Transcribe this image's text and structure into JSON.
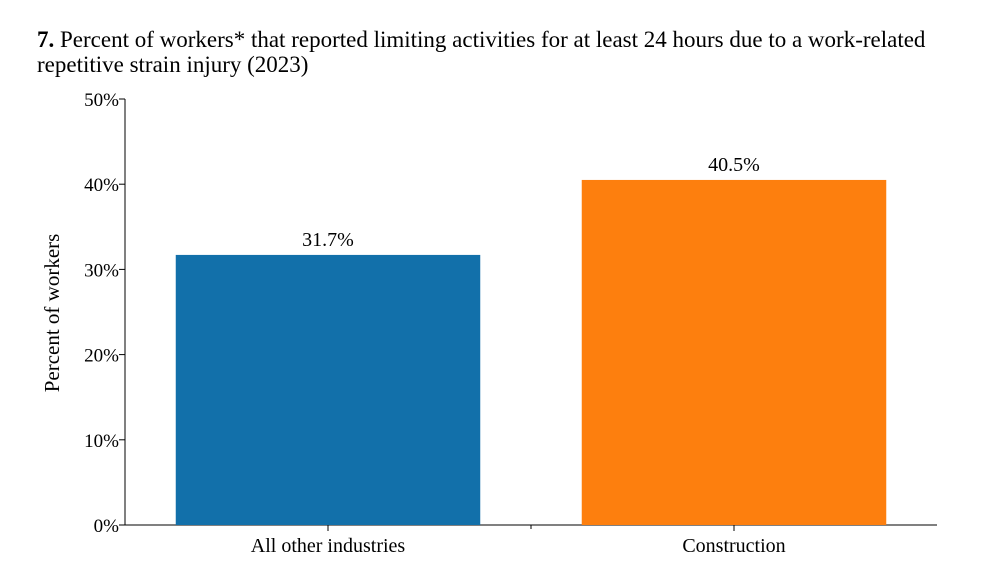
{
  "header": {
    "number": "7.",
    "title": "Percent of workers* that reported limiting activities for at least 24 hours due to a work-related repetitive strain injury (2023)"
  },
  "chart_data": {
    "type": "bar",
    "categories": [
      "All other industries",
      "Construction"
    ],
    "values": [
      31.7,
      40.5
    ],
    "value_labels": [
      "31.7%",
      "40.5%"
    ],
    "colors": [
      "#1270aa",
      "#fd7f0e"
    ],
    "ylabel": "Percent of workers",
    "ylim": [
      0,
      50
    ],
    "yticks": [
      0,
      10,
      20,
      30,
      40,
      50
    ],
    "ytick_labels": [
      "0%",
      "10%",
      "20%",
      "30%",
      "40%",
      "50%"
    ],
    "grid": false,
    "legend": "none"
  }
}
